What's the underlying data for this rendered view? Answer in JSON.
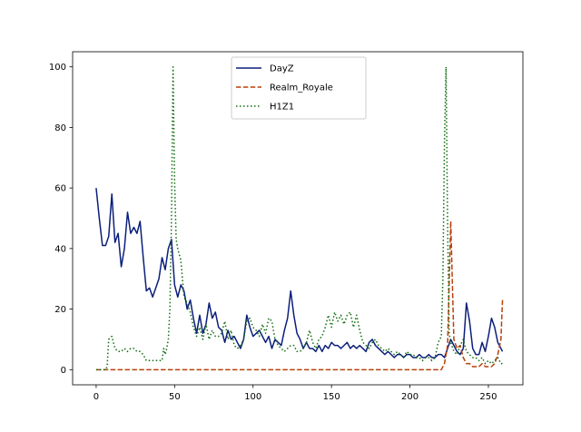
{
  "chart_data": {
    "type": "line",
    "title": "",
    "xlabel": "",
    "ylabel": "",
    "xlim": [
      -15,
      272
    ],
    "ylim": [
      -5,
      105
    ],
    "xticks": [
      0,
      50,
      100,
      150,
      200,
      250
    ],
    "yticks": [
      0,
      20,
      40,
      60,
      80,
      100
    ],
    "xtick_labels": [
      "0",
      "50",
      "100",
      "150",
      "200",
      "250"
    ],
    "ytick_labels": [
      "0",
      "20",
      "40",
      "60",
      "80",
      "100"
    ],
    "grid": false,
    "legend_position": "upper center",
    "series": [
      {
        "name": "DayZ",
        "color": "#0b1f7a",
        "style": "solid",
        "points": [
          [
            0,
            60
          ],
          [
            2,
            50
          ],
          [
            4,
            41
          ],
          [
            6,
            41
          ],
          [
            8,
            44
          ],
          [
            10,
            58
          ],
          [
            12,
            42
          ],
          [
            14,
            45
          ],
          [
            16,
            34
          ],
          [
            18,
            40
          ],
          [
            20,
            52
          ],
          [
            22,
            45
          ],
          [
            24,
            47
          ],
          [
            26,
            45
          ],
          [
            28,
            49
          ],
          [
            30,
            37
          ],
          [
            32,
            26
          ],
          [
            34,
            27
          ],
          [
            36,
            24
          ],
          [
            38,
            27
          ],
          [
            40,
            30
          ],
          [
            42,
            37
          ],
          [
            44,
            33
          ],
          [
            46,
            40
          ],
          [
            48,
            43
          ],
          [
            50,
            28
          ],
          [
            52,
            24
          ],
          [
            54,
            28
          ],
          [
            56,
            26
          ],
          [
            58,
            20
          ],
          [
            60,
            23
          ],
          [
            62,
            17
          ],
          [
            64,
            12
          ],
          [
            66,
            18
          ],
          [
            68,
            12
          ],
          [
            70,
            15
          ],
          [
            72,
            22
          ],
          [
            74,
            17
          ],
          [
            76,
            19
          ],
          [
            78,
            14
          ],
          [
            80,
            13
          ],
          [
            82,
            9
          ],
          [
            84,
            13
          ],
          [
            86,
            10
          ],
          [
            88,
            11
          ],
          [
            90,
            9
          ],
          [
            92,
            7
          ],
          [
            94,
            10
          ],
          [
            96,
            18
          ],
          [
            98,
            14
          ],
          [
            100,
            11
          ],
          [
            102,
            12
          ],
          [
            104,
            13
          ],
          [
            106,
            11
          ],
          [
            108,
            9
          ],
          [
            110,
            11
          ],
          [
            112,
            7
          ],
          [
            114,
            10
          ],
          [
            116,
            9
          ],
          [
            118,
            8
          ],
          [
            120,
            13
          ],
          [
            122,
            17
          ],
          [
            124,
            26
          ],
          [
            126,
            18
          ],
          [
            128,
            12
          ],
          [
            130,
            10
          ],
          [
            132,
            7
          ],
          [
            134,
            9
          ],
          [
            136,
            7
          ],
          [
            138,
            7
          ],
          [
            140,
            6
          ],
          [
            142,
            8
          ],
          [
            144,
            6
          ],
          [
            146,
            8
          ],
          [
            148,
            7
          ],
          [
            150,
            9
          ],
          [
            152,
            8
          ],
          [
            154,
            8
          ],
          [
            156,
            7
          ],
          [
            158,
            8
          ],
          [
            160,
            9
          ],
          [
            162,
            7
          ],
          [
            164,
            8
          ],
          [
            166,
            7
          ],
          [
            168,
            8
          ],
          [
            170,
            7
          ],
          [
            172,
            6
          ],
          [
            174,
            9
          ],
          [
            176,
            10
          ],
          [
            178,
            8
          ],
          [
            180,
            7
          ],
          [
            182,
            6
          ],
          [
            184,
            5
          ],
          [
            186,
            6
          ],
          [
            188,
            5
          ],
          [
            190,
            4
          ],
          [
            192,
            5
          ],
          [
            194,
            5
          ],
          [
            196,
            4
          ],
          [
            198,
            5
          ],
          [
            200,
            5
          ],
          [
            202,
            4
          ],
          [
            204,
            4
          ],
          [
            206,
            5
          ],
          [
            208,
            4
          ],
          [
            210,
            4
          ],
          [
            212,
            5
          ],
          [
            214,
            4
          ],
          [
            216,
            4
          ],
          [
            218,
            5
          ],
          [
            220,
            5
          ],
          [
            222,
            4
          ],
          [
            224,
            7
          ],
          [
            226,
            10
          ],
          [
            228,
            8
          ],
          [
            230,
            6
          ],
          [
            232,
            5
          ],
          [
            234,
            7
          ],
          [
            236,
            22
          ],
          [
            238,
            16
          ],
          [
            240,
            7
          ],
          [
            242,
            5
          ],
          [
            244,
            5
          ],
          [
            246,
            9
          ],
          [
            248,
            6
          ],
          [
            250,
            11
          ],
          [
            252,
            17
          ],
          [
            254,
            14
          ],
          [
            256,
            9
          ],
          [
            258,
            7
          ],
          [
            259,
            6
          ]
        ]
      },
      {
        "name": "Realm_Royale",
        "color": "#b8400a",
        "style": "dashed",
        "points": [
          [
            0,
            0
          ],
          [
            50,
            0
          ],
          [
            100,
            0
          ],
          [
            150,
            0
          ],
          [
            200,
            0
          ],
          [
            218,
            0
          ],
          [
            220,
            0
          ],
          [
            222,
            2
          ],
          [
            224,
            8
          ],
          [
            226,
            49
          ],
          [
            228,
            10
          ],
          [
            230,
            7
          ],
          [
            232,
            8
          ],
          [
            234,
            4
          ],
          [
            236,
            2
          ],
          [
            238,
            2
          ],
          [
            240,
            1
          ],
          [
            242,
            1
          ],
          [
            244,
            1
          ],
          [
            246,
            2
          ],
          [
            248,
            1
          ],
          [
            250,
            1
          ],
          [
            252,
            1
          ],
          [
            254,
            2
          ],
          [
            256,
            5
          ],
          [
            258,
            10
          ],
          [
            259,
            23
          ]
        ]
      },
      {
        "name": "H1Z1",
        "color": "#0f6b0f",
        "style": "dotted",
        "points": [
          [
            0,
            0
          ],
          [
            6,
            0
          ],
          [
            7,
            1
          ],
          [
            8,
            10
          ],
          [
            10,
            11
          ],
          [
            12,
            7
          ],
          [
            14,
            6
          ],
          [
            16,
            6
          ],
          [
            18,
            7
          ],
          [
            20,
            6
          ],
          [
            22,
            7
          ],
          [
            24,
            7
          ],
          [
            26,
            6
          ],
          [
            28,
            6
          ],
          [
            30,
            5
          ],
          [
            32,
            3
          ],
          [
            34,
            3
          ],
          [
            36,
            3
          ],
          [
            38,
            3
          ],
          [
            40,
            3
          ],
          [
            42,
            3
          ],
          [
            43,
            7
          ],
          [
            44,
            5
          ],
          [
            45,
            7
          ],
          [
            46,
            10
          ],
          [
            47,
            20
          ],
          [
            48,
            50
          ],
          [
            49,
            100
          ],
          [
            50,
            62
          ],
          [
            51,
            43
          ],
          [
            52,
            40
          ],
          [
            54,
            36
          ],
          [
            56,
            24
          ],
          [
            58,
            22
          ],
          [
            60,
            19
          ],
          [
            62,
            14
          ],
          [
            64,
            11
          ],
          [
            66,
            14
          ],
          [
            68,
            10
          ],
          [
            70,
            15
          ],
          [
            72,
            10
          ],
          [
            74,
            13
          ],
          [
            76,
            11
          ],
          [
            78,
            11
          ],
          [
            80,
            12
          ],
          [
            82,
            16
          ],
          [
            84,
            10
          ],
          [
            86,
            13
          ],
          [
            88,
            8
          ],
          [
            90,
            7
          ],
          [
            92,
            8
          ],
          [
            94,
            10
          ],
          [
            96,
            16
          ],
          [
            98,
            17
          ],
          [
            100,
            14
          ],
          [
            102,
            13
          ],
          [
            104,
            11
          ],
          [
            106,
            15
          ],
          [
            108,
            12
          ],
          [
            110,
            17
          ],
          [
            112,
            16
          ],
          [
            114,
            10
          ],
          [
            116,
            8
          ],
          [
            118,
            7
          ],
          [
            120,
            6
          ],
          [
            122,
            7
          ],
          [
            124,
            8
          ],
          [
            126,
            8
          ],
          [
            128,
            6
          ],
          [
            130,
            6
          ],
          [
            132,
            7
          ],
          [
            134,
            9
          ],
          [
            136,
            13
          ],
          [
            138,
            9
          ],
          [
            140,
            7
          ],
          [
            142,
            10
          ],
          [
            144,
            11
          ],
          [
            146,
            14
          ],
          [
            148,
            18
          ],
          [
            150,
            14
          ],
          [
            152,
            19
          ],
          [
            154,
            16
          ],
          [
            156,
            18
          ],
          [
            158,
            15
          ],
          [
            160,
            18
          ],
          [
            162,
            19
          ],
          [
            164,
            14
          ],
          [
            166,
            18
          ],
          [
            168,
            13
          ],
          [
            170,
            9
          ],
          [
            172,
            8
          ],
          [
            174,
            7
          ],
          [
            176,
            9
          ],
          [
            178,
            10
          ],
          [
            180,
            8
          ],
          [
            182,
            7
          ],
          [
            184,
            6
          ],
          [
            186,
            7
          ],
          [
            188,
            6
          ],
          [
            190,
            5
          ],
          [
            192,
            6
          ],
          [
            194,
            5
          ],
          [
            196,
            4
          ],
          [
            198,
            6
          ],
          [
            200,
            5
          ],
          [
            202,
            5
          ],
          [
            204,
            4
          ],
          [
            206,
            4
          ],
          [
            208,
            3
          ],
          [
            210,
            4
          ],
          [
            212,
            4
          ],
          [
            214,
            3
          ],
          [
            216,
            4
          ],
          [
            218,
            9
          ],
          [
            220,
            11
          ],
          [
            221,
            30
          ],
          [
            222,
            75
          ],
          [
            223,
            100
          ],
          [
            224,
            48
          ],
          [
            225,
            12
          ],
          [
            226,
            9
          ],
          [
            228,
            6
          ],
          [
            230,
            5
          ],
          [
            232,
            8
          ],
          [
            234,
            10
          ],
          [
            236,
            6
          ],
          [
            238,
            5
          ],
          [
            240,
            4
          ],
          [
            242,
            4
          ],
          [
            244,
            3
          ],
          [
            246,
            4
          ],
          [
            248,
            2
          ],
          [
            250,
            3
          ],
          [
            252,
            2
          ],
          [
            254,
            3
          ],
          [
            256,
            4
          ],
          [
            258,
            2
          ],
          [
            259,
            2
          ]
        ]
      }
    ]
  }
}
